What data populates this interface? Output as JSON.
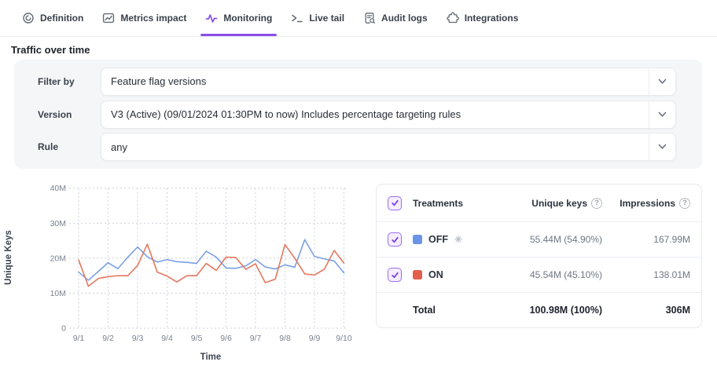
{
  "tabs": [
    {
      "label": "Definition",
      "active": false
    },
    {
      "label": "Metrics impact",
      "active": false
    },
    {
      "label": "Monitoring",
      "active": true
    },
    {
      "label": "Live tail",
      "active": false
    },
    {
      "label": "Audit logs",
      "active": false
    },
    {
      "label": "Integrations",
      "active": false
    }
  ],
  "page": {
    "title": "Traffic over time"
  },
  "filters": {
    "filter_by": {
      "label": "Filter by",
      "value": "Feature flag versions"
    },
    "version": {
      "label": "Version",
      "value": "V3 (Active) (09/01/2024 01:30PM to now) Includes percentage targeting rules"
    },
    "rule": {
      "label": "Rule",
      "value": "any"
    }
  },
  "chart_data": {
    "type": "line",
    "title": "Traffic over time",
    "xlabel": "Time",
    "ylabel": "Unique Keys",
    "ylim": [
      0,
      40
    ],
    "grid": true,
    "legend_position": "table-right",
    "x": [
      1,
      1.33,
      1.67,
      2,
      2.33,
      2.67,
      3,
      3.33,
      3.67,
      4,
      4.33,
      4.67,
      5,
      5.33,
      5.67,
      6,
      6.33,
      6.67,
      7,
      7.33,
      7.67,
      8,
      8.33,
      8.67,
      9,
      9.33,
      9.67,
      10
    ],
    "x_ticks": [
      {
        "value": 1,
        "label": "9/1"
      },
      {
        "value": 2,
        "label": "9/2"
      },
      {
        "value": 3,
        "label": "9/3"
      },
      {
        "value": 4,
        "label": "9/4"
      },
      {
        "value": 5,
        "label": "9/5"
      },
      {
        "value": 6,
        "label": "9/6"
      },
      {
        "value": 7,
        "label": "9/7"
      },
      {
        "value": 8,
        "label": "9/8"
      },
      {
        "value": 9,
        "label": "9/9"
      },
      {
        "value": 10,
        "label": "9/10"
      }
    ],
    "y_ticks": [
      {
        "value": 0,
        "label": "0"
      },
      {
        "value": 10,
        "label": "10M"
      },
      {
        "value": 20,
        "label": "20M"
      },
      {
        "value": 30,
        "label": "30M"
      },
      {
        "value": 40,
        "label": "40M"
      }
    ],
    "series": [
      {
        "name": "OFF",
        "color": "#7aa0e4",
        "values": [
          16.0,
          13.7,
          16.2,
          18.7,
          17.0,
          20.3,
          23.2,
          20.4,
          18.9,
          19.6,
          19.0,
          18.8,
          18.5,
          22.0,
          20.3,
          17.2,
          17.1,
          17.8,
          19.6,
          17.5,
          16.9,
          18.1,
          17.4,
          25.3,
          20.5,
          19.8,
          19.2,
          15.8
        ]
      },
      {
        "name": "ON",
        "color": "#e4785f",
        "values": [
          19.5,
          12.0,
          14.2,
          14.7,
          15.0,
          15.0,
          17.9,
          24.0,
          16.0,
          14.9,
          13.2,
          15.0,
          15.0,
          18.5,
          16.5,
          20.3,
          20.2,
          16.8,
          18.4,
          13.0,
          14.0,
          23.9,
          20.0,
          15.5,
          15.2,
          16.8,
          22.2,
          18.6
        ]
      }
    ]
  },
  "table": {
    "headers": {
      "treatments": "Treatments",
      "unique_keys": "Unique keys",
      "impressions": "Impressions"
    },
    "rows": [
      {
        "name": "OFF",
        "color": "#6b94e8",
        "default_indicator": "✳",
        "unique_keys": "55.44M (54.90%)",
        "impressions": "167.99M",
        "checked": true
      },
      {
        "name": "ON",
        "color": "#e2604c",
        "default_indicator": "",
        "unique_keys": "45.54M (45.10%)",
        "impressions": "138.01M",
        "checked": true
      }
    ],
    "total": {
      "label": "Total",
      "unique_keys": "100.98M (100%)",
      "impressions": "306M"
    }
  },
  "colors": {
    "accent": "#8a4fe8",
    "off_series": "#7aa0e4",
    "on_series": "#e4785f"
  }
}
